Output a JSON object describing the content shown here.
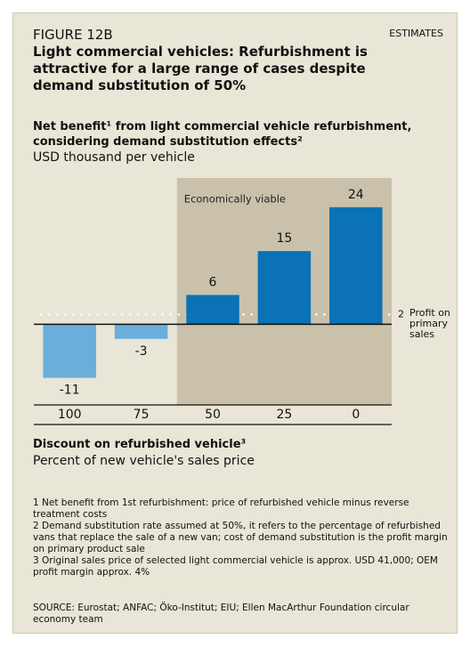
{
  "chart_data": {
    "type": "bar",
    "figure_label": "FIGURE 12B",
    "tag": "ESTIMATES",
    "headline": "Light commercial vehicles: Refurbishment is attractive for a large range of cases despite demand substitution of 50%",
    "title": "Net benefit¹ from light commercial vehicle refurbishment, considering demand substitution effects²",
    "subtitle": "USD thousand per vehicle",
    "annotation": "Economically viable",
    "categories": [
      "100",
      "75",
      "50",
      "25",
      "0"
    ],
    "values": [
      -11,
      -3,
      6,
      15,
      24
    ],
    "colors": [
      "#6aaedb",
      "#6aaedb",
      "#0a72b5",
      "#0a72b5",
      "#0a72b5"
    ],
    "ylim": [
      -15,
      30
    ],
    "reference_line": {
      "value": 2,
      "label": "Profit on primary sales"
    },
    "xlabel": "Discount on refurbished vehicle³",
    "xlabel_sub": "Percent of new vehicle's sales price",
    "footnotes": [
      "1 Net benefit from 1st refurbishment: price of refurbished vehicle minus reverse treatment costs",
      "2 Demand substitution rate assumed at 50%, it refers to the percentage of refurbished vans that replace the sale of a new van; cost of demand substitution is the profit margin on primary product sale",
      "3 Original sales price of selected light commercial vehicle is approx. USD 41,000; OEM profit margin approx. 4%"
    ],
    "source": "SOURCE: Eurostat; ANFAC; Öko-Institut; EIU; Ellen MacArthur Foundation circular economy team"
  }
}
